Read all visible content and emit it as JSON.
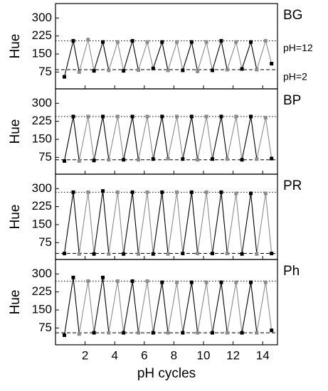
{
  "chart_data": [
    {
      "type": "line",
      "title": "BG",
      "ylabel": "Hue",
      "x": [
        0.6,
        1.2,
        1.6,
        2.2,
        2.6,
        3.2,
        3.6,
        4.2,
        4.6,
        5.2,
        5.6,
        6.2,
        6.6,
        7.2,
        7.6,
        8.2,
        8.6,
        9.2,
        9.6,
        10.2,
        10.6,
        11.2,
        11.6,
        12.2,
        12.6,
        13.2,
        13.6,
        14.2,
        14.6
      ],
      "series": [
        {
          "color": "#000000",
          "alt_color": "#8c8c8c",
          "values": [
            55,
            205,
            75,
            210,
            80,
            200,
            82,
            200,
            80,
            205,
            83,
            200,
            90,
            200,
            82,
            200,
            82,
            200,
            78,
            200,
            82,
            205,
            85,
            200,
            88,
            200,
            85,
            205,
            110
          ]
        }
      ],
      "hlines": [
        {
          "value": 205,
          "style": "dotted",
          "label": "pH=12"
        },
        {
          "value": 85,
          "style": "dashed",
          "label": "pH=2"
        }
      ],
      "xlim": [
        0,
        15
      ],
      "xticks": [
        2,
        4,
        6,
        8,
        10,
        12,
        14
      ],
      "ylim": [
        5,
        360
      ],
      "yticks": [
        75,
        150,
        225,
        300
      ]
    },
    {
      "type": "line",
      "title": "BP",
      "ylabel": "Hue",
      "x": [
        0.6,
        1.2,
        1.6,
        2.2,
        2.6,
        3.2,
        3.6,
        4.2,
        4.6,
        5.2,
        5.6,
        6.2,
        6.6,
        7.2,
        7.6,
        8.2,
        8.6,
        9.2,
        9.6,
        10.2,
        10.6,
        11.2,
        11.6,
        12.2,
        12.6,
        13.2,
        13.6,
        14.2,
        14.6
      ],
      "series": [
        {
          "color": "#000000",
          "alt_color": "#8c8c8c",
          "values": [
            60,
            245,
            60,
            245,
            62,
            245,
            65,
            245,
            65,
            245,
            65,
            245,
            68,
            245,
            70,
            245,
            68,
            245,
            65,
            245,
            68,
            245,
            68,
            245,
            65,
            245,
            68,
            240,
            70
          ]
        }
      ],
      "hlines": [
        {
          "value": 245,
          "style": "dotted"
        },
        {
          "value": 65,
          "style": "dashed"
        }
      ],
      "xlim": [
        0,
        15
      ],
      "xticks": [
        2,
        4,
        6,
        8,
        10,
        12,
        14
      ],
      "ylim": [
        5,
        360
      ],
      "yticks": [
        75,
        150,
        225,
        300
      ]
    },
    {
      "type": "line",
      "title": "PR",
      "ylabel": "Hue",
      "x": [
        0.6,
        1.2,
        1.6,
        2.2,
        2.6,
        3.2,
        3.6,
        4.2,
        4.6,
        5.2,
        5.6,
        6.2,
        6.6,
        7.2,
        7.6,
        8.2,
        8.6,
        9.2,
        9.6,
        10.2,
        10.6,
        11.2,
        11.6,
        12.2,
        12.6,
        13.2,
        13.6,
        14.2,
        14.6
      ],
      "series": [
        {
          "color": "#000000",
          "alt_color": "#8c8c8c",
          "values": [
            30,
            285,
            28,
            285,
            28,
            290,
            28,
            285,
            28,
            285,
            28,
            285,
            28,
            285,
            28,
            285,
            30,
            285,
            30,
            285,
            30,
            285,
            30,
            280,
            28,
            280,
            28,
            280,
            30
          ]
        }
      ],
      "hlines": [
        {
          "value": 285,
          "style": "dotted"
        },
        {
          "value": 30,
          "style": "dashed"
        }
      ],
      "xlim": [
        0,
        15
      ],
      "xticks": [
        2,
        4,
        6,
        8,
        10,
        12,
        14
      ],
      "ylim": [
        5,
        360
      ],
      "yticks": [
        75,
        150,
        225,
        300
      ]
    },
    {
      "type": "line",
      "title": "Ph",
      "ylabel": "Hue",
      "xlabel": "pH cycles",
      "x": [
        0.6,
        1.2,
        1.6,
        2.2,
        2.6,
        3.2,
        3.6,
        4.2,
        4.6,
        5.2,
        5.6,
        6.2,
        6.6,
        7.2,
        7.6,
        8.2,
        8.6,
        9.2,
        9.6,
        10.2,
        10.6,
        11.2,
        11.6,
        12.2,
        12.6,
        13.2,
        13.6,
        14.2,
        14.6
      ],
      "series": [
        {
          "color": "#000000",
          "alt_color": "#8c8c8c",
          "values": [
            45,
            285,
            50,
            270,
            55,
            285,
            55,
            270,
            55,
            270,
            55,
            270,
            55,
            265,
            55,
            265,
            55,
            265,
            55,
            265,
            55,
            265,
            55,
            265,
            55,
            265,
            55,
            265,
            65
          ]
        }
      ],
      "hlines": [
        {
          "value": 270,
          "style": "dotted"
        },
        {
          "value": 55,
          "style": "dashed"
        }
      ],
      "xlim": [
        0,
        15
      ],
      "xticks": [
        2,
        4,
        6,
        8,
        10,
        12,
        14
      ],
      "ylim": [
        5,
        360
      ],
      "yticks": [
        75,
        150,
        225,
        300
      ]
    }
  ]
}
